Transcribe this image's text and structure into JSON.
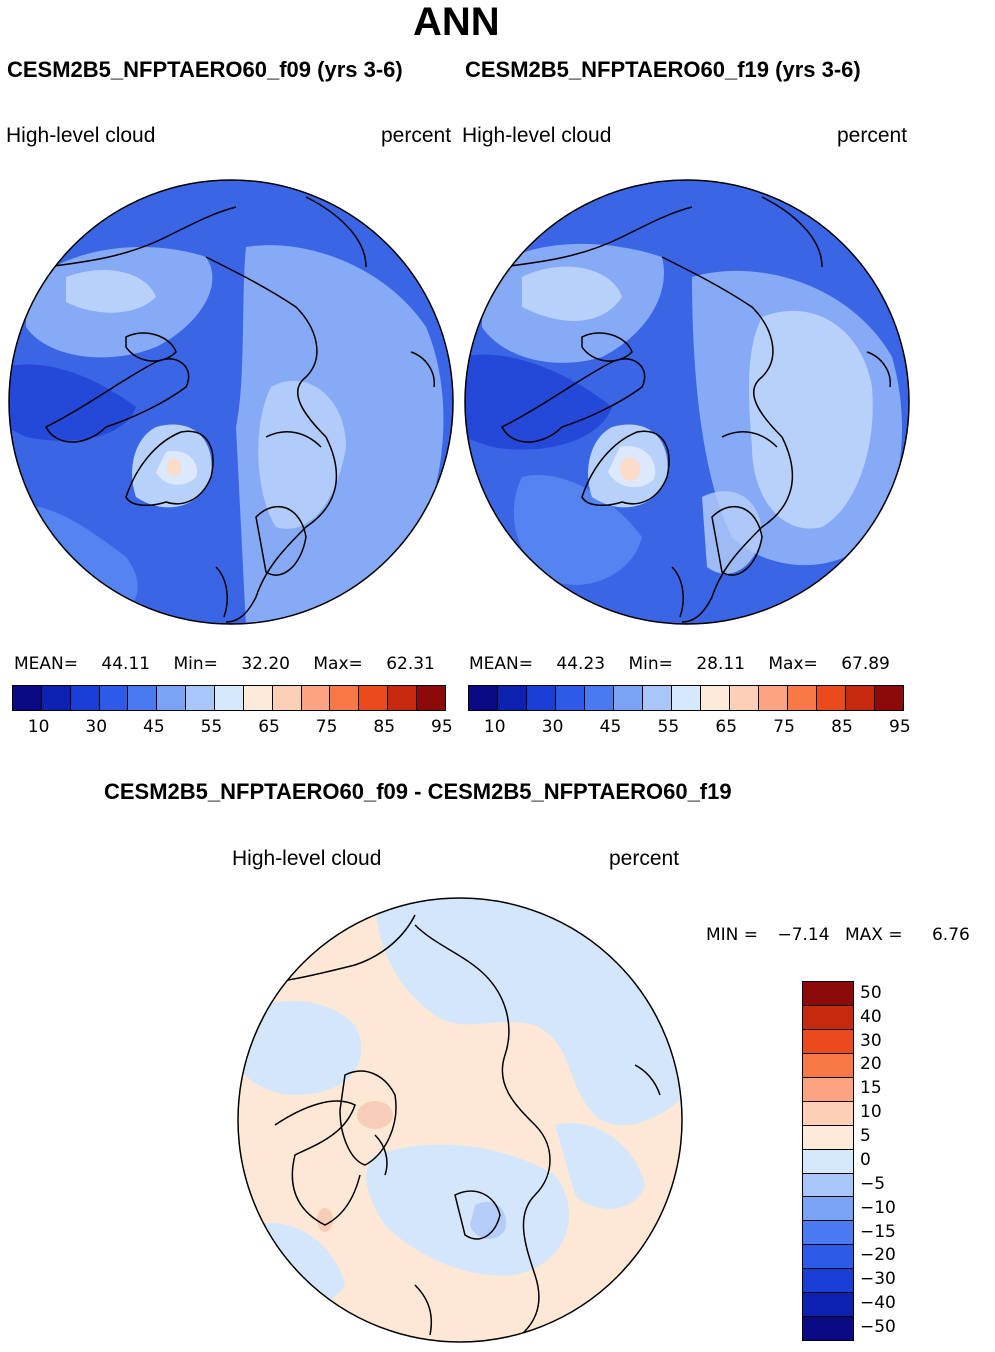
{
  "title": "ANN",
  "panels": [
    {
      "case": "CESM2B5_NFPTAERO60_f09 (yrs 3-6)",
      "variable": "High-level cloud",
      "units": "percent",
      "mean_label": "MEAN=",
      "mean": "44.11",
      "min_label": "Min=",
      "min": "32.20",
      "max_label": "Max=",
      "max": "62.31"
    },
    {
      "case": "CESM2B5_NFPTAERO60_f19 (yrs 3-6)",
      "variable": "High-level cloud",
      "units": "percent",
      "mean_label": "MEAN=",
      "mean": "44.23",
      "min_label": "Min=",
      "min": "28.11",
      "max_label": "Max=",
      "max": "67.89"
    }
  ],
  "abs_colorbar": {
    "colors": [
      "#0a0a85",
      "#0d22b0",
      "#1a3fd6",
      "#2d5ae8",
      "#4a7aef",
      "#7aa2f5",
      "#a9c6fa",
      "#d6e8fb",
      "#fdeadb",
      "#fdcfb6",
      "#fca482",
      "#f87946",
      "#ea4a1c",
      "#c6290d",
      "#8c0a0a"
    ],
    "ticks": [
      "10",
      "30",
      "45",
      "55",
      "65",
      "75",
      "85",
      "95"
    ]
  },
  "diff": {
    "title": "CESM2B5_NFPTAERO60_f09 - CESM2B5_NFPTAERO60_f19",
    "variable": "High-level cloud",
    "units": "percent",
    "min_label": "MIN =",
    "min": "−7.14",
    "max_label": "MAX =",
    "max": "6.76"
  },
  "diff_colorbar": {
    "colors": [
      "#8c0a0a",
      "#c6290d",
      "#ea4a1c",
      "#f87946",
      "#fca482",
      "#fdcfb6",
      "#fdeadb",
      "#d6e8fb",
      "#a9c6fa",
      "#7aa2f5",
      "#4a7aef",
      "#2d5ae8",
      "#1a3fd6",
      "#0d22b0",
      "#0a0a85"
    ],
    "ticks": [
      "50",
      "40",
      "30",
      "20",
      "15",
      "10",
      "5",
      "0",
      "−5",
      "−10",
      "−15",
      "−20",
      "−30",
      "−40",
      "−50"
    ]
  },
  "map_colors": {
    "base": "#3a66e6",
    "mid": "#5484ef",
    "light": "#86aaf5",
    "pale": "#b8d1fa",
    "whitish": "#dce9fc",
    "peach": "#fcdcc8",
    "dark": "#2449d8",
    "diff_blue": "#d4e6fb",
    "diff_peach": "#fde8d6",
    "diff_mid": "#b5cdf8",
    "diff_pink": "#f8cdb8"
  }
}
